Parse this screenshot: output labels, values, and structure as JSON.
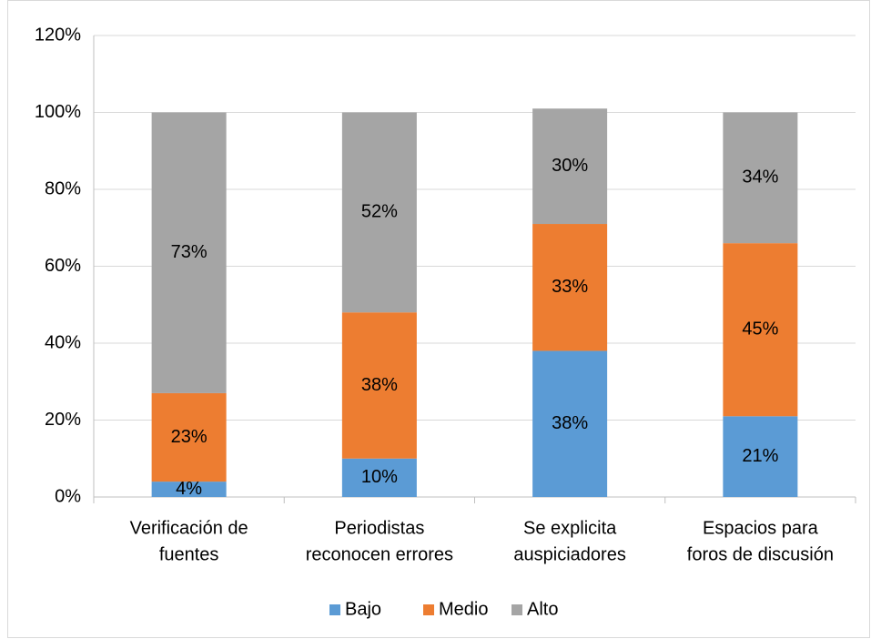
{
  "chart_data": {
    "type": "stacked_bar",
    "categories": [
      [
        "Verificación de",
        "fuentes"
      ],
      [
        "Periodistas",
        "reconocen errores"
      ],
      [
        "Se explicita",
        "auspiciadores"
      ],
      [
        "Espacios para",
        "foros de discusión"
      ]
    ],
    "series": [
      {
        "name": "Bajo",
        "color": "#5b9bd5",
        "values": [
          4,
          10,
          38,
          21
        ],
        "value_labels": [
          "4%",
          "10%",
          "38%",
          "21%"
        ]
      },
      {
        "name": "Medio",
        "color": "#ed7d31",
        "values": [
          23,
          38,
          33,
          45
        ],
        "value_labels": [
          "23%",
          "38%",
          "33%",
          "45%"
        ]
      },
      {
        "name": "Alto",
        "color": "#a5a5a5",
        "values": [
          73,
          52,
          30,
          34
        ],
        "value_labels": [
          "73%",
          "52%",
          "30%",
          "34%"
        ]
      }
    ],
    "ylim": [
      0,
      120
    ],
    "yticks": [
      {
        "value": 0,
        "label": "0%"
      },
      {
        "value": 20,
        "label": "20%"
      },
      {
        "value": 40,
        "label": "40%"
      },
      {
        "value": 60,
        "label": "60%"
      },
      {
        "value": 80,
        "label": "80%"
      },
      {
        "value": 100,
        "label": "100%"
      },
      {
        "value": 120,
        "label": "120%"
      }
    ],
    "grid": true,
    "legend": "bottom"
  }
}
